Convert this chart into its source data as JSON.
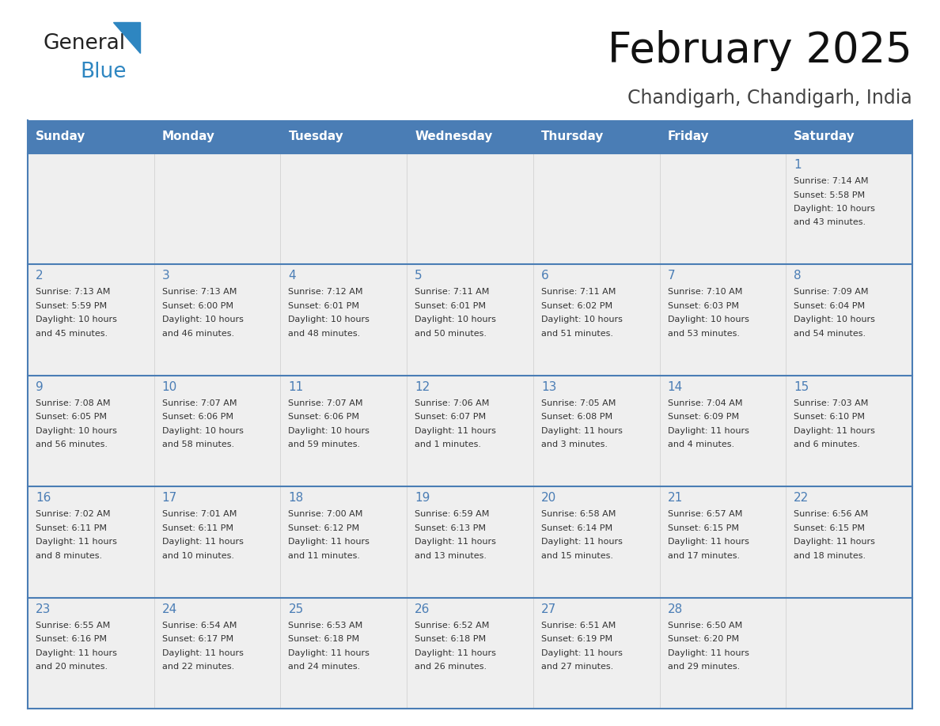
{
  "title": "February 2025",
  "subtitle": "Chandigarh, Chandigarh, India",
  "header_color": "#4A7DB5",
  "header_text_color": "#FFFFFF",
  "cell_bg_color": "#EFEFEF",
  "day_number_color": "#4A7DB5",
  "text_color": "#333333",
  "border_color": "#4A7DB5",
  "row_divider_color": "#4A7DB5",
  "outer_border_color": "#4A7DB5",
  "days_of_week": [
    "Sunday",
    "Monday",
    "Tuesday",
    "Wednesday",
    "Thursday",
    "Friday",
    "Saturday"
  ],
  "calendar_data": [
    [
      null,
      null,
      null,
      null,
      null,
      null,
      {
        "day": 1,
        "sunrise": "7:14 AM",
        "sunset": "5:58 PM",
        "daylight_hours": 10,
        "daylight_minutes": 43
      }
    ],
    [
      {
        "day": 2,
        "sunrise": "7:13 AM",
        "sunset": "5:59 PM",
        "daylight_hours": 10,
        "daylight_minutes": 45
      },
      {
        "day": 3,
        "sunrise": "7:13 AM",
        "sunset": "6:00 PM",
        "daylight_hours": 10,
        "daylight_minutes": 46
      },
      {
        "day": 4,
        "sunrise": "7:12 AM",
        "sunset": "6:01 PM",
        "daylight_hours": 10,
        "daylight_minutes": 48
      },
      {
        "day": 5,
        "sunrise": "7:11 AM",
        "sunset": "6:01 PM",
        "daylight_hours": 10,
        "daylight_minutes": 50
      },
      {
        "day": 6,
        "sunrise": "7:11 AM",
        "sunset": "6:02 PM",
        "daylight_hours": 10,
        "daylight_minutes": 51
      },
      {
        "day": 7,
        "sunrise": "7:10 AM",
        "sunset": "6:03 PM",
        "daylight_hours": 10,
        "daylight_minutes": 53
      },
      {
        "day": 8,
        "sunrise": "7:09 AM",
        "sunset": "6:04 PM",
        "daylight_hours": 10,
        "daylight_minutes": 54
      }
    ],
    [
      {
        "day": 9,
        "sunrise": "7:08 AM",
        "sunset": "6:05 PM",
        "daylight_hours": 10,
        "daylight_minutes": 56
      },
      {
        "day": 10,
        "sunrise": "7:07 AM",
        "sunset": "6:06 PM",
        "daylight_hours": 10,
        "daylight_minutes": 58
      },
      {
        "day": 11,
        "sunrise": "7:07 AM",
        "sunset": "6:06 PM",
        "daylight_hours": 10,
        "daylight_minutes": 59
      },
      {
        "day": 12,
        "sunrise": "7:06 AM",
        "sunset": "6:07 PM",
        "daylight_hours": 11,
        "daylight_minutes": 1
      },
      {
        "day": 13,
        "sunrise": "7:05 AM",
        "sunset": "6:08 PM",
        "daylight_hours": 11,
        "daylight_minutes": 3
      },
      {
        "day": 14,
        "sunrise": "7:04 AM",
        "sunset": "6:09 PM",
        "daylight_hours": 11,
        "daylight_minutes": 4
      },
      {
        "day": 15,
        "sunrise": "7:03 AM",
        "sunset": "6:10 PM",
        "daylight_hours": 11,
        "daylight_minutes": 6
      }
    ],
    [
      {
        "day": 16,
        "sunrise": "7:02 AM",
        "sunset": "6:11 PM",
        "daylight_hours": 11,
        "daylight_minutes": 8
      },
      {
        "day": 17,
        "sunrise": "7:01 AM",
        "sunset": "6:11 PM",
        "daylight_hours": 11,
        "daylight_minutes": 10
      },
      {
        "day": 18,
        "sunrise": "7:00 AM",
        "sunset": "6:12 PM",
        "daylight_hours": 11,
        "daylight_minutes": 11
      },
      {
        "day": 19,
        "sunrise": "6:59 AM",
        "sunset": "6:13 PM",
        "daylight_hours": 11,
        "daylight_minutes": 13
      },
      {
        "day": 20,
        "sunrise": "6:58 AM",
        "sunset": "6:14 PM",
        "daylight_hours": 11,
        "daylight_minutes": 15
      },
      {
        "day": 21,
        "sunrise": "6:57 AM",
        "sunset": "6:15 PM",
        "daylight_hours": 11,
        "daylight_minutes": 17
      },
      {
        "day": 22,
        "sunrise": "6:56 AM",
        "sunset": "6:15 PM",
        "daylight_hours": 11,
        "daylight_minutes": 18
      }
    ],
    [
      {
        "day": 23,
        "sunrise": "6:55 AM",
        "sunset": "6:16 PM",
        "daylight_hours": 11,
        "daylight_minutes": 20
      },
      {
        "day": 24,
        "sunrise": "6:54 AM",
        "sunset": "6:17 PM",
        "daylight_hours": 11,
        "daylight_minutes": 22
      },
      {
        "day": 25,
        "sunrise": "6:53 AM",
        "sunset": "6:18 PM",
        "daylight_hours": 11,
        "daylight_minutes": 24
      },
      {
        "day": 26,
        "sunrise": "6:52 AM",
        "sunset": "6:18 PM",
        "daylight_hours": 11,
        "daylight_minutes": 26
      },
      {
        "day": 27,
        "sunrise": "6:51 AM",
        "sunset": "6:19 PM",
        "daylight_hours": 11,
        "daylight_minutes": 27
      },
      {
        "day": 28,
        "sunrise": "6:50 AM",
        "sunset": "6:20 PM",
        "daylight_hours": 11,
        "daylight_minutes": 29
      },
      null
    ]
  ],
  "logo_text1": "General",
  "logo_text2": "Blue",
  "logo_text1_color": "#222222",
  "logo_text2_color": "#2E86C1",
  "logo_triangle_color": "#2E86C1",
  "title_fontsize": 38,
  "subtitle_fontsize": 17,
  "header_fontsize": 11,
  "day_num_fontsize": 11,
  "cell_text_fontsize": 8
}
